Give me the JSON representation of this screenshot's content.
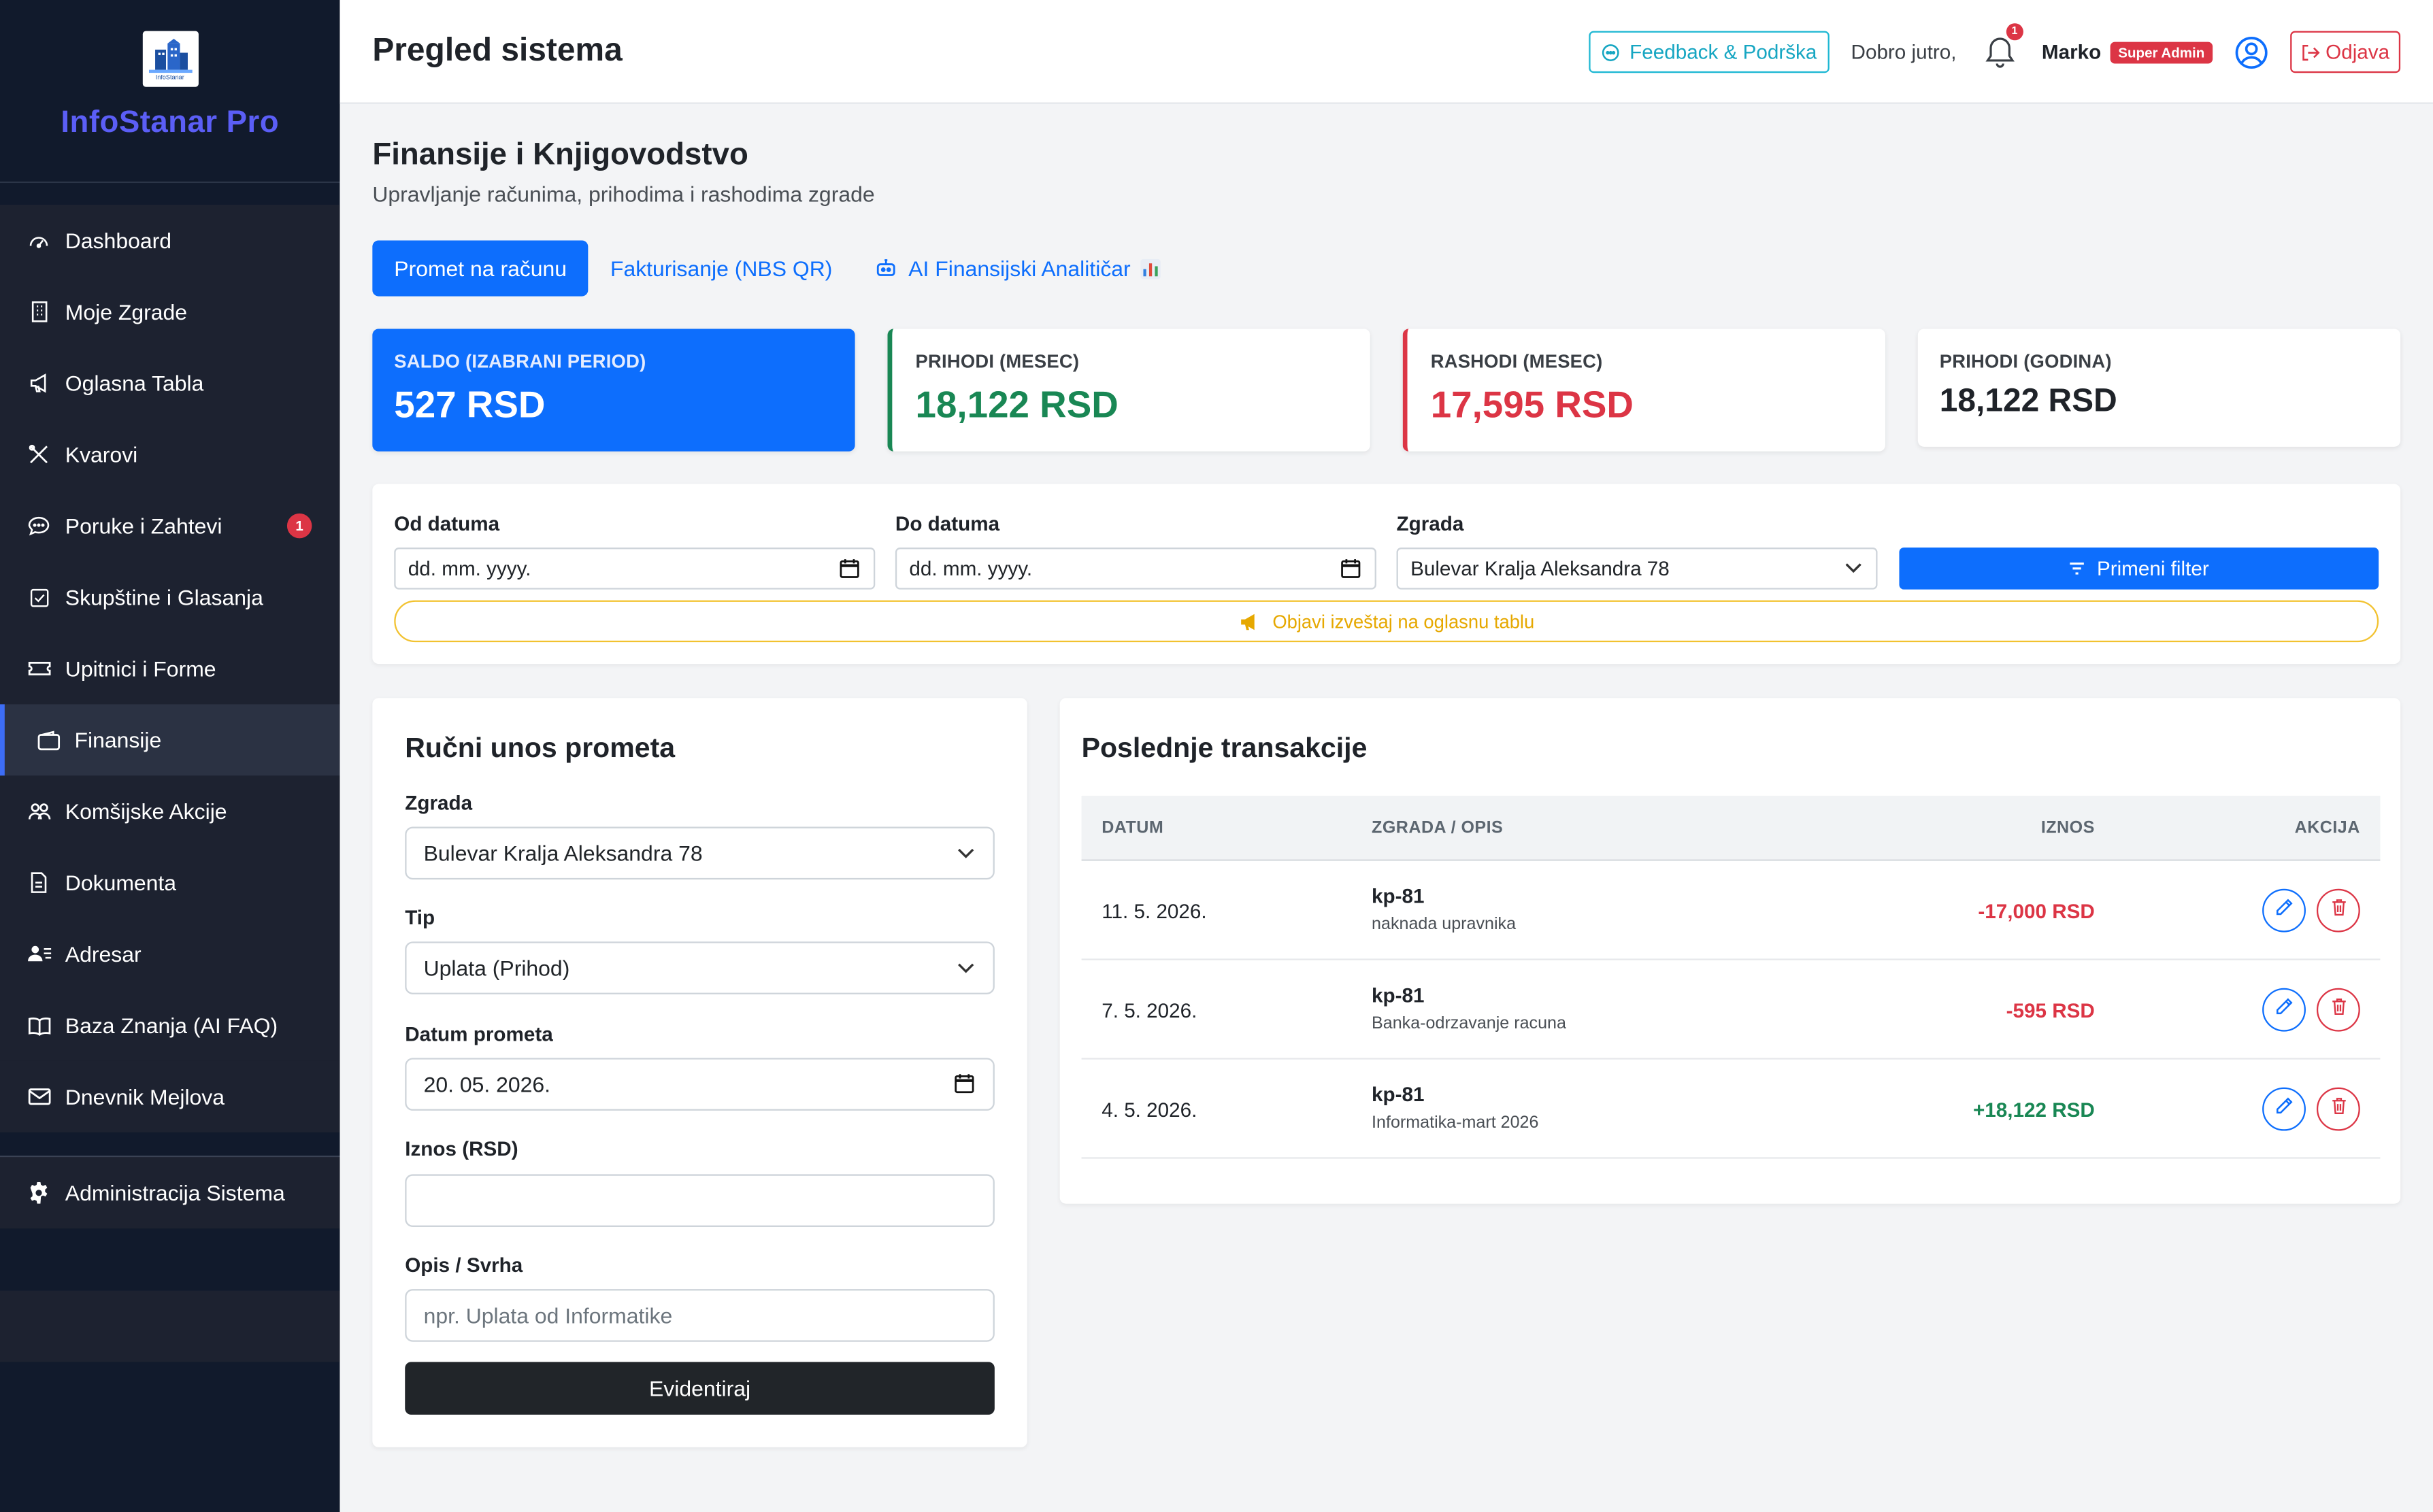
{
  "brand": {
    "logo_text": "InfoStanar",
    "name": "InfoStanar Pro"
  },
  "sidebar": {
    "items": [
      {
        "label": "Dashboard",
        "icon": "speedometer-icon"
      },
      {
        "label": "Moje Zgrade",
        "icon": "building-icon"
      },
      {
        "label": "Oglasna Tabla",
        "icon": "megaphone-icon"
      },
      {
        "label": "Kvarovi",
        "icon": "tools-icon"
      },
      {
        "label": "Poruke i Zahtevi",
        "icon": "chat-icon",
        "badge": "1"
      },
      {
        "label": "Skupštine i Glasanja",
        "icon": "check-square-icon"
      },
      {
        "label": "Upitnici i Forme",
        "icon": "ticket-icon"
      },
      {
        "label": "Finansije",
        "icon": "wallet-icon",
        "active": true
      },
      {
        "label": "Komšijske Akcije",
        "icon": "people-icon"
      },
      {
        "label": "Dokumenta",
        "icon": "file-icon"
      },
      {
        "label": "Adresar",
        "icon": "person-lines-icon"
      },
      {
        "label": "Baza Znanja (AI FAQ)",
        "icon": "book-icon"
      },
      {
        "label": "Dnevnik Mejlova",
        "icon": "mail-icon"
      },
      {
        "label": "Administracija Sistema",
        "icon": "gear-icon"
      }
    ]
  },
  "header": {
    "title": "Pregled sistema",
    "feedback_label": "Feedback & Podrška",
    "greeting": "Dobro jutro,",
    "notification_count": "1",
    "user_name": "Marko",
    "role": "Super Admin",
    "logout_label": "Odjava"
  },
  "page": {
    "title": "Finansije i Knjigovodstvo",
    "subtitle": "Upravljanje računima, prihodima i rashodima zgrade"
  },
  "tabs": [
    {
      "label": "Promet na računu",
      "active": true
    },
    {
      "label": "Fakturisanje (NBS QR)"
    },
    {
      "label": "AI Finansijski Analitičar"
    }
  ],
  "stats": [
    {
      "label": "SALDO (IZABRANI PERIOD)",
      "value": "527 RSD"
    },
    {
      "label": "PRIHODI (MESEC)",
      "value": "18,122 RSD"
    },
    {
      "label": "RASHODI (MESEC)",
      "value": "17,595 RSD"
    },
    {
      "label": "PRIHODI (GODINA)",
      "value": "18,122 RSD"
    }
  ],
  "filter": {
    "from_label": "Od datuma",
    "from_value": "dd. mm. yyyy.",
    "to_label": "Do datuma",
    "to_value": "dd. mm. yyyy.",
    "building_label": "Zgrada",
    "building_value": "Bulevar Kralja Aleksandra 78",
    "apply_label": "Primeni filter",
    "publish_label": "Objavi izveštaj na oglasnu tablu"
  },
  "manual_entry": {
    "title": "Ručni unos prometa",
    "building_label": "Zgrada",
    "building_value": "Bulevar Kralja Aleksandra 78",
    "type_label": "Tip",
    "type_value": "Uplata (Prihod)",
    "date_label": "Datum prometa",
    "date_value": "20. 05. 2026.",
    "amount_label": "Iznos (RSD)",
    "amount_value": "",
    "desc_label": "Opis / Svrha",
    "desc_placeholder": "npr. Uplata od Informatike",
    "submit_label": "Evidentiraj"
  },
  "transactions": {
    "title": "Poslednje transakcije",
    "columns": [
      "DATUM",
      "ZGRADA / OPIS",
      "IZNOS",
      "AKCIJA"
    ],
    "rows": [
      {
        "date": "11. 5. 2026.",
        "code": "kp-81",
        "desc": "naknada upravnika",
        "amount": "-17,000 RSD",
        "sign": "neg"
      },
      {
        "date": "7. 5. 2026.",
        "code": "kp-81",
        "desc": "Banka-odrzavanje racuna",
        "amount": "-595 RSD",
        "sign": "neg"
      },
      {
        "date": "4. 5. 2026.",
        "code": "kp-81",
        "desc": "Informatika-mart 2026",
        "amount": "+18,122 RSD",
        "sign": "pos"
      }
    ]
  },
  "colors": {
    "primary": "#0d6efd",
    "success": "#198754",
    "danger": "#dc3545",
    "warning": "#f2c230",
    "sidebar_bg": "#111a2c",
    "brand_accent": "#5b5ef6"
  }
}
